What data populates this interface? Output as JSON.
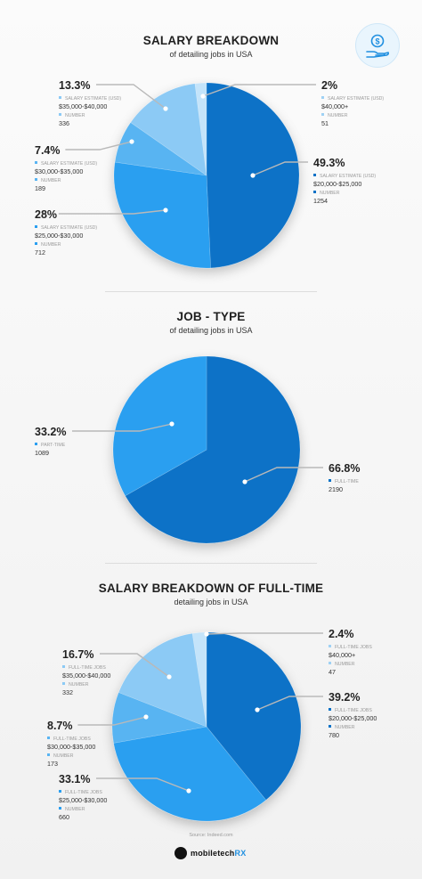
{
  "header": {
    "title": "SALARY BREAKDOWN",
    "subtitle": "of detailing jobs in USA"
  },
  "section2": {
    "title": "JOB - TYPE",
    "subtitle": "of detailing jobs in USA"
  },
  "section3": {
    "title": "SALARY BREAKDOWN OF FULL-TIME",
    "subtitle": "detailing jobs in USA"
  },
  "footer": {
    "source": "Source: Indeed.com",
    "brand_dark": "mobiletech",
    "brand_accent": "RX"
  },
  "colors": {
    "darkBlue": "#0b72c7",
    "midBlue": "#2b9ff0",
    "lightBlue": "#59b4f2",
    "paleBlue": "#8ccaf5",
    "palestBlue": "#c4e4fa"
  },
  "icons": [
    "money-hand-icon",
    "mobiletechrx-logo-icon"
  ],
  "chart_data": [
    {
      "type": "pie",
      "slices": [
        {
          "percent_label": "49.3%",
          "value": 49.3,
          "label": "SALARY ESTIMATE (USD)",
          "range": "$20,000-$25,000",
          "number_label": "NUMBER",
          "number": "1254"
        },
        {
          "percent_label": "28%",
          "value": 28,
          "label": "SALARY ESTIMATE (USD)",
          "range": "$25,000-$30,000",
          "number_label": "NUMBER",
          "number": "712"
        },
        {
          "percent_label": "7.4%",
          "value": 7.4,
          "label": "SALARY ESTIMATE (USD)",
          "range": "$30,000-$35,000",
          "number_label": "NUMBER",
          "number": "189"
        },
        {
          "percent_label": "13.3%",
          "value": 13.3,
          "label": "SALARY ESTIMATE (USD)",
          "range": "$35,000-$40,000",
          "number_label": "NUMBER",
          "number": "336"
        },
        {
          "percent_label": "2%",
          "value": 2,
          "label": "SALARY ESTIMATE (USD)",
          "range": "$40,000+",
          "number_label": "NUMBER",
          "number": "51"
        }
      ]
    },
    {
      "type": "pie",
      "slices": [
        {
          "percent_label": "66.8%",
          "value": 66.8,
          "label": "FULL-TIME",
          "number": "2190"
        },
        {
          "percent_label": "33.2%",
          "value": 33.2,
          "label": "PART-TIME",
          "number": "1089"
        }
      ]
    },
    {
      "type": "pie",
      "slices": [
        {
          "percent_label": "39.2%",
          "value": 39.2,
          "label": "FULL-TIME JOBS",
          "range": "$20,000-$25,000",
          "number_label": "NUMBER",
          "number": "780"
        },
        {
          "percent_label": "33.1%",
          "value": 33.1,
          "label": "FULL-TIME JOBS",
          "range": "$25,000-$30,000",
          "number_label": "NUMBER",
          "number": "660"
        },
        {
          "percent_label": "8.7%",
          "value": 8.7,
          "label": "FULL-TIME JOBS",
          "range": "$30,000-$35,000",
          "number_label": "NUMBER",
          "number": "173"
        },
        {
          "percent_label": "16.7%",
          "value": 16.7,
          "label": "FULL-TIME JOBS",
          "range": "$35,000-$40,000",
          "number_label": "NUMBER",
          "number": "332"
        },
        {
          "percent_label": "2.4%",
          "value": 2.4,
          "label": "FULL-TIME JOBS",
          "range": "$40,000+",
          "number_label": "NUMBER",
          "number": "47"
        }
      ]
    }
  ]
}
